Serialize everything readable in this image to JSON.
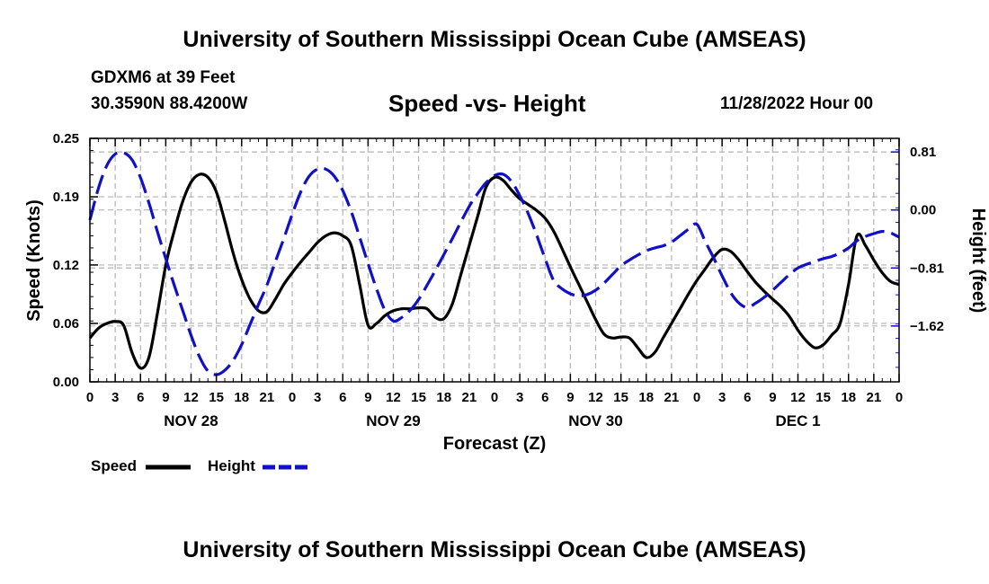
{
  "header": {
    "title": "University of Southern Mississippi Ocean Cube (AMSEAS)",
    "station": "GDXM6 at 39 Feet",
    "coords": "30.3590N  88.4200W",
    "date_hour": "11/28/2022 Hour 00"
  },
  "footer": {
    "title": "University of Southern Mississippi Ocean Cube (AMSEAS)"
  },
  "colors": {
    "speed": "#000000",
    "height": "#1010c8",
    "grid": "#b4b4b4"
  },
  "chart_data": {
    "type": "line",
    "title": "Speed -vs- Height",
    "xlabel": "Forecast (Z)",
    "ylabel": "Speed (Knots)",
    "y2label": "Height (feet)",
    "xlim": [
      0,
      96
    ],
    "ylim": [
      0,
      0.25
    ],
    "y2lim": [
      -2.4,
      1.0
    ],
    "x_tick_step": 3,
    "x_tick_labels": [
      "0",
      "3",
      "6",
      "9",
      "12",
      "15",
      "18",
      "21",
      "0",
      "3",
      "6",
      "9",
      "12",
      "15",
      "18",
      "21",
      "0",
      "3",
      "6",
      "9",
      "12",
      "15",
      "18",
      "21",
      "0",
      "3",
      "6",
      "9",
      "12",
      "15",
      "18",
      "21",
      "0"
    ],
    "day_labels": [
      {
        "label": "NOV 28",
        "x": 12
      },
      {
        "label": "NOV 29",
        "x": 36
      },
      {
        "label": "NOV 30",
        "x": 60
      },
      {
        "label": "DEC 1",
        "x": 84
      }
    ],
    "y_ticks": [
      {
        "value": 0.0,
        "label": "0.00"
      },
      {
        "value": 0.06,
        "label": "0.06"
      },
      {
        "value": 0.12,
        "label": "0.12"
      },
      {
        "value": 0.19,
        "label": "0.19"
      },
      {
        "value": 0.25,
        "label": "0.25"
      }
    ],
    "y2_ticks": [
      {
        "value": 0.81,
        "label": "0.81"
      },
      {
        "value": 0.0,
        "label": "0.00"
      },
      {
        "value": -0.81,
        "label": "−0.81"
      },
      {
        "value": -1.62,
        "label": "−1.62"
      }
    ],
    "series": [
      {
        "name": "Speed",
        "axis": "left",
        "style": "solid",
        "x": [
          0,
          1,
          2,
          3,
          4,
          5,
          6,
          7,
          8,
          9,
          10,
          11,
          12,
          13,
          14,
          15,
          16,
          17,
          18,
          19,
          20,
          21,
          22,
          23,
          24,
          25,
          26,
          27,
          28,
          29,
          30,
          31,
          32,
          33,
          34,
          35,
          36,
          37,
          38,
          39,
          40,
          41,
          42,
          43,
          44,
          45,
          46,
          47,
          48,
          49,
          50,
          51,
          52,
          53,
          54,
          55,
          56,
          57,
          58,
          59,
          60,
          61,
          62,
          63,
          64,
          65,
          66,
          67,
          68,
          69,
          70,
          71,
          72,
          73,
          74,
          75,
          76,
          77,
          78,
          79,
          80,
          81,
          82,
          83,
          84,
          85,
          86,
          87,
          88,
          89,
          90,
          91,
          92,
          93,
          94,
          95,
          96
        ],
        "values": [
          0.045,
          0.055,
          0.06,
          0.062,
          0.058,
          0.03,
          0.014,
          0.025,
          0.07,
          0.12,
          0.155,
          0.185,
          0.205,
          0.213,
          0.21,
          0.195,
          0.165,
          0.132,
          0.105,
          0.085,
          0.073,
          0.072,
          0.085,
          0.1,
          0.112,
          0.123,
          0.133,
          0.143,
          0.15,
          0.153,
          0.15,
          0.14,
          0.1,
          0.058,
          0.06,
          0.068,
          0.073,
          0.075,
          0.075,
          0.076,
          0.075,
          0.066,
          0.065,
          0.08,
          0.11,
          0.14,
          0.17,
          0.2,
          0.21,
          0.207,
          0.197,
          0.188,
          0.182,
          0.176,
          0.168,
          0.155,
          0.137,
          0.118,
          0.1,
          0.082,
          0.064,
          0.049,
          0.045,
          0.046,
          0.045,
          0.035,
          0.025,
          0.03,
          0.045,
          0.06,
          0.075,
          0.09,
          0.104,
          0.116,
          0.128,
          0.136,
          0.134,
          0.125,
          0.113,
          0.102,
          0.093,
          0.085,
          0.077,
          0.067,
          0.053,
          0.042,
          0.035,
          0.038,
          0.048,
          0.06,
          0.1,
          0.15,
          0.14,
          0.125,
          0.112,
          0.103,
          0.1
        ]
      },
      {
        "name": "Height",
        "axis": "right",
        "style": "dashed",
        "x": [
          0,
          1,
          2,
          3,
          4,
          5,
          6,
          7,
          8,
          9,
          10,
          11,
          12,
          13,
          14,
          15,
          16,
          17,
          18,
          19,
          20,
          21,
          22,
          23,
          24,
          25,
          26,
          27,
          28,
          29,
          30,
          31,
          32,
          33,
          34,
          35,
          36,
          37,
          38,
          39,
          40,
          41,
          42,
          43,
          44,
          45,
          46,
          47,
          48,
          49,
          50,
          51,
          52,
          53,
          54,
          55,
          56,
          57,
          58,
          59,
          60,
          61,
          62,
          63,
          64,
          65,
          66,
          67,
          68,
          69,
          70,
          71,
          72,
          73,
          74,
          75,
          76,
          77,
          78,
          79,
          80,
          81,
          82,
          83,
          84,
          85,
          86,
          87,
          88,
          89,
          90,
          91,
          92,
          93,
          94,
          95,
          96
        ],
        "values": [
          -0.14,
          0.3,
          0.62,
          0.78,
          0.8,
          0.7,
          0.45,
          0.1,
          -0.3,
          -0.68,
          -1.05,
          -1.4,
          -1.75,
          -2.05,
          -2.25,
          -2.3,
          -2.24,
          -2.1,
          -1.88,
          -1.6,
          -1.32,
          -1.05,
          -0.72,
          -0.4,
          -0.06,
          0.25,
          0.47,
          0.57,
          0.57,
          0.47,
          0.27,
          -0.02,
          -0.38,
          -0.75,
          -1.1,
          -1.4,
          -1.55,
          -1.5,
          -1.4,
          -1.25,
          -1.05,
          -0.84,
          -0.62,
          -0.4,
          -0.17,
          0.05,
          0.23,
          0.38,
          0.48,
          0.5,
          0.4,
          0.2,
          -0.05,
          -0.35,
          -0.68,
          -0.98,
          -1.1,
          -1.17,
          -1.2,
          -1.18,
          -1.12,
          -1.02,
          -0.9,
          -0.78,
          -0.7,
          -0.63,
          -0.57,
          -0.53,
          -0.5,
          -0.45,
          -0.36,
          -0.27,
          -0.2,
          -0.44,
          -0.67,
          -0.92,
          -1.15,
          -1.3,
          -1.36,
          -1.3,
          -1.22,
          -1.12,
          -1.01,
          -0.9,
          -0.81,
          -0.76,
          -0.72,
          -0.68,
          -0.65,
          -0.6,
          -0.53,
          -0.43,
          -0.37,
          -0.33,
          -0.3,
          -0.32,
          -0.38
        ]
      }
    ]
  }
}
